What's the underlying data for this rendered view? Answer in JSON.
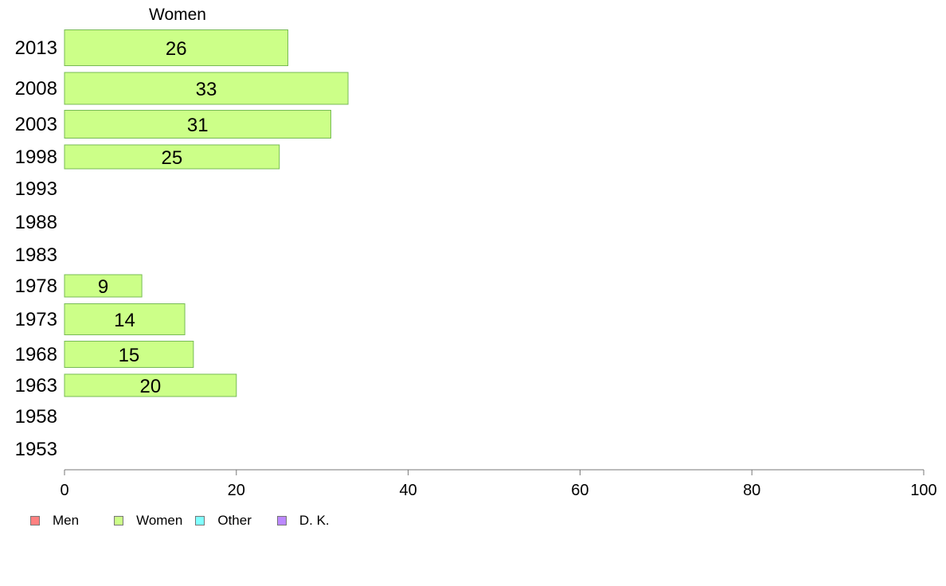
{
  "chart_data": {
    "type": "bar",
    "orientation": "horizontal",
    "series_title": "Women",
    "categories": [
      "2013",
      "2008",
      "2003",
      "1998",
      "1993",
      "1988",
      "1983",
      "1978",
      "1973",
      "1968",
      "1963",
      "1958",
      "1953"
    ],
    "series": [
      {
        "name": "Women",
        "values": [
          26,
          33,
          31,
          25,
          null,
          null,
          null,
          9,
          14,
          15,
          20,
          null,
          null
        ]
      }
    ],
    "data_labels": [
      "26",
      "33",
      "31",
      "25",
      "",
      "",
      "",
      "9",
      "14",
      "15",
      "20",
      "",
      ""
    ],
    "xlim": [
      0,
      100
    ],
    "xticks": [
      0,
      20,
      40,
      60,
      80,
      100
    ],
    "grid": false,
    "legend": {
      "placement": "bottom-left",
      "entries": [
        {
          "label": "Men",
          "color": "#ff8080"
        },
        {
          "label": "Women",
          "color": "#ccff88"
        },
        {
          "label": "Other",
          "color": "#80ffff"
        },
        {
          "label": "D. K.",
          "color": "#bb88ff"
        }
      ]
    },
    "bar_color": "#ccff88",
    "bar_stroke": "#77bb55",
    "axis_color": "#777777"
  }
}
